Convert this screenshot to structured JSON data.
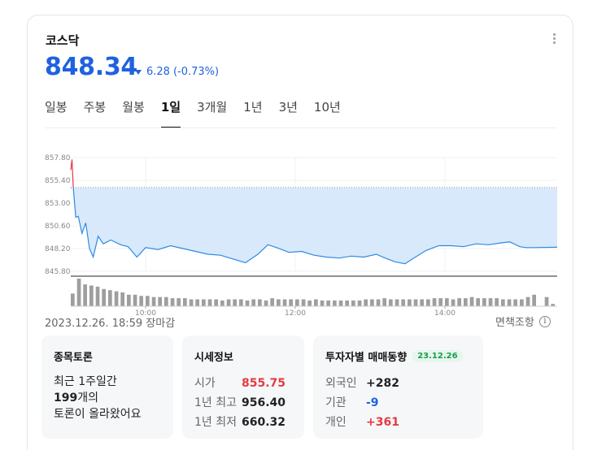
{
  "stock": {
    "name": "코스닥",
    "price": "848.34",
    "change": "6.28",
    "change_pct": "(-0.73%)"
  },
  "tabs": [
    {
      "label": "일봉",
      "active": false
    },
    {
      "label": "주봉",
      "active": false
    },
    {
      "label": "월봉",
      "active": false
    },
    {
      "label": "1일",
      "active": true
    },
    {
      "label": "3개월",
      "active": false
    },
    {
      "label": "1년",
      "active": false
    },
    {
      "label": "3년",
      "active": false
    },
    {
      "label": "10년",
      "active": false
    }
  ],
  "chart_data": {
    "type": "area",
    "y_ticks": [
      "857.80",
      "855.40",
      "853.00",
      "850.60",
      "848.20",
      "845.80"
    ],
    "x_ticks": [
      "10:00",
      "12:00",
      "14:00"
    ],
    "ylim": [
      845.8,
      857.8
    ],
    "previous_close": 854.62,
    "grid": true,
    "colors": {
      "line": "#2f8ae5",
      "fill": "#d8e9fb",
      "up": "#e33b44",
      "volume": "#9e9e9e"
    },
    "price_series": [
      [
        "09:00",
        856.5
      ],
      [
        "09:01",
        857.6
      ],
      [
        "09:02",
        854.6
      ],
      [
        "09:04",
        851.5
      ],
      [
        "09:06",
        851.6
      ],
      [
        "09:09",
        849.8
      ],
      [
        "09:12",
        850.9
      ],
      [
        "09:15",
        848.2
      ],
      [
        "09:18",
        847.3
      ],
      [
        "09:22",
        849.5
      ],
      [
        "09:26",
        848.7
      ],
      [
        "09:32",
        849.1
      ],
      [
        "09:40",
        848.6
      ],
      [
        "09:46",
        848.4
      ],
      [
        "09:53",
        847.3
      ],
      [
        "10:00",
        848.3
      ],
      [
        "10:10",
        848.1
      ],
      [
        "10:20",
        848.5
      ],
      [
        "10:30",
        848.2
      ],
      [
        "10:40",
        847.9
      ],
      [
        "10:50",
        847.6
      ],
      [
        "11:00",
        847.5
      ],
      [
        "11:10",
        847.1
      ],
      [
        "11:20",
        846.7
      ],
      [
        "11:30",
        847.6
      ],
      [
        "11:38",
        848.6
      ],
      [
        "11:45",
        848.3
      ],
      [
        "11:55",
        847.8
      ],
      [
        "12:05",
        847.9
      ],
      [
        "12:15",
        847.5
      ],
      [
        "12:25",
        847.3
      ],
      [
        "12:35",
        847.2
      ],
      [
        "12:45",
        847.4
      ],
      [
        "12:55",
        847.3
      ],
      [
        "13:05",
        847.6
      ],
      [
        "13:12",
        847.2
      ],
      [
        "13:20",
        846.8
      ],
      [
        "13:28",
        846.6
      ],
      [
        "13:35",
        847.2
      ],
      [
        "13:45",
        848.0
      ],
      [
        "13:55",
        848.5
      ],
      [
        "14:05",
        848.5
      ],
      [
        "14:15",
        848.4
      ],
      [
        "14:25",
        848.7
      ],
      [
        "14:35",
        848.6
      ],
      [
        "14:45",
        848.8
      ],
      [
        "14:52",
        848.9
      ],
      [
        "15:00",
        848.4
      ],
      [
        "15:05",
        848.3
      ],
      [
        "15:10",
        848.3
      ],
      [
        "15:30",
        848.34
      ]
    ],
    "volume": [
      11,
      24,
      19,
      18,
      17,
      15,
      14,
      13,
      12,
      10,
      10,
      9,
      9,
      8,
      8,
      8,
      7,
      7,
      7,
      6,
      6,
      6,
      6,
      6,
      5,
      6,
      6,
      6,
      5,
      6,
      6,
      5,
      7,
      6,
      6,
      6,
      6,
      6,
      5,
      6,
      5,
      5,
      5,
      5,
      5,
      5,
      5,
      6,
      6,
      6,
      7,
      6,
      6,
      6,
      6,
      6,
      6,
      6,
      7,
      7,
      7,
      6,
      7,
      7,
      8,
      7,
      7,
      7,
      7,
      6,
      6,
      6,
      6,
      8,
      10,
      0,
      8,
      2
    ]
  },
  "date_text": "2023.12.26. 18:59 장마감",
  "disclaimer": {
    "label": "면책조항",
    "icon": "info-icon"
  },
  "discussion": {
    "title": "종목토론",
    "line1": "최근 1주일간",
    "count": "199",
    "count_suffix": "개의",
    "line3": "토론이 올라왔어요"
  },
  "market_info": {
    "title": "시세정보",
    "rows": [
      {
        "label": "시가",
        "value": "855.75"
      },
      {
        "label": "1년 최고",
        "value": "956.40"
      },
      {
        "label": "1년 최저",
        "value": "660.32"
      }
    ]
  },
  "investors": {
    "title": "투자자별 매매동향",
    "date_badge": "23.12.26",
    "rows": [
      {
        "label": "외국인",
        "value": "+282"
      },
      {
        "label": "기관",
        "value": "-9"
      },
      {
        "label": "개인",
        "value": "+361"
      }
    ]
  }
}
